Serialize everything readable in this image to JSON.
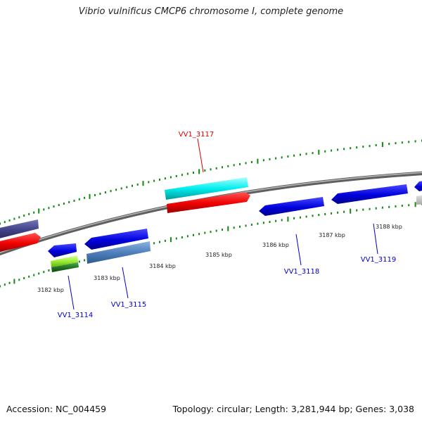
{
  "title": "Vibrio vulnificus CMCP6 chromosome I, complete genome",
  "footer": {
    "accession": "Accession: NC_004459",
    "summary": "Topology: circular; Length: 3,281,944 bp; Genes: 3,038"
  },
  "ruler": {
    "ticks": [
      "3182 kbp",
      "3183 kbp",
      "3184 kbp",
      "3185 kbp",
      "3186 kbp",
      "3187 kbp",
      "3188 kbp"
    ]
  },
  "genes": [
    {
      "label": "VV1_3114",
      "color": "#0000cc"
    },
    {
      "label": "VV1_3115",
      "color": "#0000cc"
    },
    {
      "label": "VV1_3117",
      "color": "#dd0000"
    },
    {
      "label": "VV1_3118",
      "color": "#0000cc"
    },
    {
      "label": "VV1_3119",
      "color": "#0000cc"
    }
  ],
  "colors": {
    "backbone": "#888888",
    "tick": "#118811",
    "cds_forward": "#0000ee",
    "cds_reverse": "#ee0000",
    "trna": "#00e5e5",
    "misc_feature": "#4a4a9a",
    "gene_lightgreen": "#99ee33",
    "gene_steelblue": "#4f86c6"
  }
}
